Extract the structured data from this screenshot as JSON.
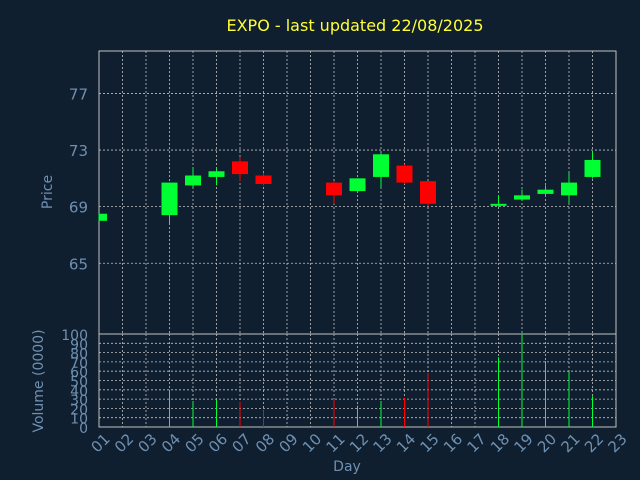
{
  "chart_data": {
    "type": "candlestick",
    "title": "EXPO - last updated 22/08/2025",
    "xlabel": "Day",
    "price_panel": {
      "ylabel": "Price",
      "ylim": [
        60,
        80
      ],
      "yticks": [
        65,
        69,
        73,
        77
      ],
      "grid": true
    },
    "volume_panel": {
      "ylabel": "Volume (0000)",
      "ylim": [
        0,
        100
      ],
      "yticks": [
        0,
        10,
        20,
        30,
        40,
        50,
        60,
        70,
        80,
        90,
        100
      ],
      "grid": true
    },
    "x_ticks": [
      "01",
      "02",
      "03",
      "04",
      "05",
      "06",
      "07",
      "08",
      "09",
      "10",
      "11",
      "12",
      "13",
      "14",
      "15",
      "16",
      "17",
      "18",
      "19",
      "20",
      "21",
      "22",
      "23"
    ],
    "colors": {
      "up": "#00ff33",
      "down": "#ff0000",
      "grid": "#c0c0c0",
      "axis": "#c0c0c0"
    },
    "candles": [
      {
        "day": "01",
        "open": 68.0,
        "close": 68.5,
        "high": 68.5,
        "low": 68.0,
        "volume": 0
      },
      {
        "day": "04",
        "open": 68.4,
        "close": 70.7,
        "high": 70.7,
        "low": 67.8,
        "volume": 40
      },
      {
        "day": "05",
        "open": 70.5,
        "close": 71.2,
        "high": 71.8,
        "low": 70.3,
        "volume": 28
      },
      {
        "day": "06",
        "open": 71.1,
        "close": 71.5,
        "high": 71.7,
        "low": 70.5,
        "volume": 30
      },
      {
        "day": "07",
        "open": 72.2,
        "close": 71.3,
        "high": 72.5,
        "low": 70.8,
        "volume": 27
      },
      {
        "day": "08",
        "open": 71.2,
        "close": 70.6,
        "high": 71.4,
        "low": 70.5,
        "volume": 18
      },
      {
        "day": "11",
        "open": 70.7,
        "close": 69.8,
        "high": 70.8,
        "low": 69.2,
        "volume": 30
      },
      {
        "day": "12",
        "open": 70.1,
        "close": 71.0,
        "high": 71.0,
        "low": 70.0,
        "volume": 23
      },
      {
        "day": "13",
        "open": 71.1,
        "close": 72.7,
        "high": 72.8,
        "low": 70.3,
        "volume": 28
      },
      {
        "day": "14",
        "open": 71.9,
        "close": 70.7,
        "high": 72.0,
        "low": 70.6,
        "volume": 31
      },
      {
        "day": "15",
        "open": 70.8,
        "close": 69.2,
        "high": 70.8,
        "low": 69.0,
        "volume": 58
      },
      {
        "day": "18",
        "open": 69.1,
        "close": 69.2,
        "high": 69.8,
        "low": 69.0,
        "volume": 75
      },
      {
        "day": "19",
        "open": 69.5,
        "close": 69.8,
        "high": 70.2,
        "low": 69.4,
        "volume": 100
      },
      {
        "day": "20",
        "open": 69.9,
        "close": 70.2,
        "high": 70.5,
        "low": 69.7,
        "volume": 71
      },
      {
        "day": "21",
        "open": 69.8,
        "close": 70.7,
        "high": 71.4,
        "low": 69.2,
        "volume": 60
      },
      {
        "day": "22",
        "open": 71.1,
        "close": 72.3,
        "high": 72.9,
        "low": 71.0,
        "volume": 33
      }
    ]
  }
}
